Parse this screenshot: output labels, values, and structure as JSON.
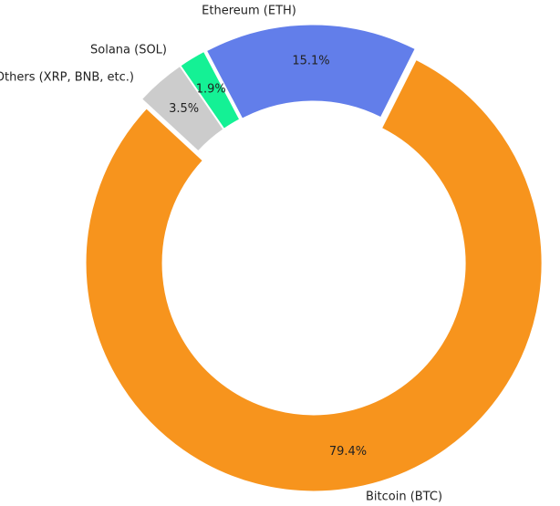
{
  "chart_data": {
    "type": "donut",
    "categories": [
      "Bitcoin (BTC)",
      "Ethereum (ETH)",
      "Solana (SOL)",
      "Others (XRP, BNB, etc.)"
    ],
    "values": [
      79.4,
      15.1,
      1.9,
      3.5
    ],
    "value_labels": [
      "79.4%",
      "15.1%",
      "1.9%",
      "3.5%"
    ],
    "colors": [
      "#f7941d",
      "#627eea",
      "#14f195",
      "#cccccc"
    ]
  }
}
